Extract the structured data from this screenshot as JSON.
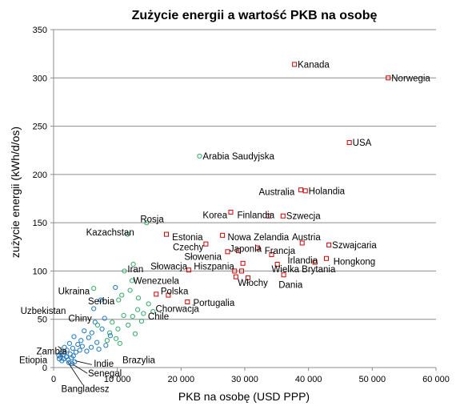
{
  "chart_data": {
    "type": "scatter",
    "title": "Zużycie energii a wartość PKB na osobę",
    "xlabel": "PKB na osobę (USD PPP)",
    "ylabel": "zużycie energii (kWh/d/os)",
    "xlim": [
      0,
      60000
    ],
    "ylim": [
      0,
      350
    ],
    "xticks": [
      0,
      10000,
      20000,
      30000,
      40000,
      50000,
      60000
    ],
    "xtick_labels": [
      "0",
      "10 000",
      "20 000",
      "30 000",
      "40 000",
      "50 000",
      "60 000"
    ],
    "yticks": [
      0,
      50,
      100,
      150,
      200,
      250,
      300,
      350
    ],
    "ytick_labels": [
      "0",
      "50",
      "100",
      "150",
      "200",
      "250",
      "300",
      "350"
    ],
    "grid": "horizontal",
    "colors": {
      "high": "#cc0000",
      "mid": "#33aa66",
      "low": "#1f77c0"
    },
    "series": [
      {
        "color": "high",
        "points": [
          {
            "x": 37800,
            "y": 314,
            "label": "Kanada"
          },
          {
            "x": 52500,
            "y": 300,
            "label": "Norwegia"
          },
          {
            "x": 46400,
            "y": 233,
            "label": "USA"
          },
          {
            "x": 38800,
            "y": 184
          },
          {
            "x": 39500,
            "y": 183,
            "label": "Holandia"
          },
          {
            "x": 27800,
            "y": 161
          },
          {
            "x": 33700,
            "y": 157
          },
          {
            "x": 36000,
            "y": 157,
            "label": "Szwecja"
          },
          {
            "x": 17700,
            "y": 138
          },
          {
            "x": 26500,
            "y": 137
          },
          {
            "x": 39000,
            "y": 129
          },
          {
            "x": 23900,
            "y": 128
          },
          {
            "x": 43200,
            "y": 127,
            "label": "Szwajcaria"
          },
          {
            "x": 32000,
            "y": 124
          },
          {
            "x": 29000,
            "y": 121
          },
          {
            "x": 34200,
            "y": 117
          },
          {
            "x": 27300,
            "y": 120
          },
          {
            "x": 42800,
            "y": 113
          },
          {
            "x": 41000,
            "y": 109
          },
          {
            "x": 29700,
            "y": 108
          },
          {
            "x": 35100,
            "y": 107
          },
          {
            "x": 21200,
            "y": 101
          },
          {
            "x": 28400,
            "y": 100
          },
          {
            "x": 29500,
            "y": 100
          },
          {
            "x": 36100,
            "y": 96
          },
          {
            "x": 28600,
            "y": 94
          },
          {
            "x": 30500,
            "y": 93
          },
          {
            "x": 16100,
            "y": 76
          },
          {
            "x": 18000,
            "y": 75
          },
          {
            "x": 21000,
            "y": 68
          }
        ]
      },
      {
        "color": "mid",
        "points": [
          {
            "x": 22900,
            "y": 219,
            "label": "Arabia Saudyjska"
          },
          {
            "x": 14600,
            "y": 150
          },
          {
            "x": 11600,
            "y": 138
          },
          {
            "x": 12500,
            "y": 107
          },
          {
            "x": 11100,
            "y": 100
          },
          {
            "x": 12300,
            "y": 90
          },
          {
            "x": 6300,
            "y": 82
          },
          {
            "x": 12000,
            "y": 80
          },
          {
            "x": 10700,
            "y": 75
          },
          {
            "x": 13300,
            "y": 72
          },
          {
            "x": 10200,
            "y": 70
          },
          {
            "x": 14900,
            "y": 66
          },
          {
            "x": 13200,
            "y": 60
          },
          {
            "x": 15600,
            "y": 58
          },
          {
            "x": 14100,
            "y": 56
          },
          {
            "x": 11000,
            "y": 54
          },
          {
            "x": 12400,
            "y": 53
          },
          {
            "x": 13800,
            "y": 48
          },
          {
            "x": 9200,
            "y": 47
          },
          {
            "x": 11700,
            "y": 44
          },
          {
            "x": 10100,
            "y": 40
          },
          {
            "x": 8800,
            "y": 36
          },
          {
            "x": 12800,
            "y": 35
          },
          {
            "x": 9800,
            "y": 30
          },
          {
            "x": 8400,
            "y": 28
          },
          {
            "x": 10400,
            "y": 25
          },
          {
            "x": 6900,
            "y": 44
          }
        ]
      },
      {
        "color": "low",
        "points": [
          {
            "x": 9700,
            "y": 83
          },
          {
            "x": 7400,
            "y": 70
          },
          {
            "x": 6300,
            "y": 61
          },
          {
            "x": 8000,
            "y": 51
          },
          {
            "x": 6500,
            "y": 47
          },
          {
            "x": 7600,
            "y": 40
          },
          {
            "x": 4800,
            "y": 38
          },
          {
            "x": 6000,
            "y": 36
          },
          {
            "x": 8900,
            "y": 33
          },
          {
            "x": 3200,
            "y": 32
          },
          {
            "x": 5500,
            "y": 31
          },
          {
            "x": 4300,
            "y": 28
          },
          {
            "x": 6800,
            "y": 26
          },
          {
            "x": 2500,
            "y": 25
          },
          {
            "x": 3800,
            "y": 24
          },
          {
            "x": 8200,
            "y": 23
          },
          {
            "x": 4500,
            "y": 22
          },
          {
            "x": 5900,
            "y": 21
          },
          {
            "x": 1700,
            "y": 21
          },
          {
            "x": 3000,
            "y": 20
          },
          {
            "x": 7100,
            "y": 19
          },
          {
            "x": 2100,
            "y": 18
          },
          {
            "x": 4100,
            "y": 18
          },
          {
            "x": 5200,
            "y": 17
          },
          {
            "x": 3500,
            "y": 16
          },
          {
            "x": 1200,
            "y": 15
          },
          {
            "x": 2600,
            "y": 14
          },
          {
            "x": 1500,
            "y": 13
          },
          {
            "x": 800,
            "y": 13
          },
          {
            "x": 3100,
            "y": 12
          },
          {
            "x": 2000,
            "y": 11
          },
          {
            "x": 1100,
            "y": 11
          },
          {
            "x": 2800,
            "y": 10
          },
          {
            "x": 1600,
            "y": 9
          },
          {
            "x": 900,
            "y": 9
          },
          {
            "x": 2300,
            "y": 8
          },
          {
            "x": 1300,
            "y": 7
          },
          {
            "x": 3300,
            "y": 6
          },
          {
            "x": 2400,
            "y": 5
          },
          {
            "x": 2900,
            "y": 4
          }
        ]
      }
    ],
    "annotations": [
      {
        "text": "Australia",
        "x": 32200,
        "y": 182
      },
      {
        "text": "Korea",
        "x": 23400,
        "y": 158
      },
      {
        "text": "Finlandia",
        "x": 28800,
        "y": 158
      },
      {
        "text": "Rosja",
        "x": 13600,
        "y": 154
      },
      {
        "text": "Kazachstan",
        "x": 5100,
        "y": 140
      },
      {
        "text": "Estonia",
        "x": 18600,
        "y": 135
      },
      {
        "text": "Nowa Zelandia",
        "x": 27300,
        "y": 135
      },
      {
        "text": "Austria",
        "x": 37400,
        "y": 135
      },
      {
        "text": "Czechy",
        "x": 18700,
        "y": 125
      },
      {
        "text": "Japonia",
        "x": 27600,
        "y": 123
      },
      {
        "text": "Francja",
        "x": 33100,
        "y": 121
      },
      {
        "text": "Słowenia",
        "x": 20500,
        "y": 115
      },
      {
        "text": "Irlandia",
        "x": 36700,
        "y": 111
      },
      {
        "text": "Hongkong",
        "x": 43900,
        "y": 110
      },
      {
        "text": "Iran",
        "x": 11600,
        "y": 102
      },
      {
        "text": "Słowacja",
        "x": 15200,
        "y": 105
      },
      {
        "text": "Hiszpania",
        "x": 22000,
        "y": 105
      },
      {
        "text": "Wielka Brytania",
        "x": 34200,
        "y": 102
      },
      {
        "text": "Wenezuela",
        "x": 12500,
        "y": 90
      },
      {
        "text": "Włochy",
        "x": 28900,
        "y": 88
      },
      {
        "text": "Dania",
        "x": 35300,
        "y": 86
      },
      {
        "text": "Ukraina",
        "x": 700,
        "y": 79
      },
      {
        "text": "Polska",
        "x": 16800,
        "y": 79
      },
      {
        "text": "Serbia",
        "x": 5400,
        "y": 69
      },
      {
        "text": "Portugalia",
        "x": 21900,
        "y": 67
      },
      {
        "text": "Chorwacja",
        "x": 16000,
        "y": 61
      },
      {
        "text": "Uzbekistan",
        "x": -5200,
        "y": 59
      },
      {
        "text": "Chile",
        "x": 14800,
        "y": 53
      },
      {
        "text": "Chiny",
        "x": 2300,
        "y": 51
      },
      {
        "text": "Zambia",
        "x": -2700,
        "y": 17
      },
      {
        "text": "Etiopia",
        "x": -5400,
        "y": 8
      },
      {
        "text": "Indie",
        "x": 6300,
        "y": 4
      },
      {
        "text": "Brazylia",
        "x": 10800,
        "y": 8
      },
      {
        "text": "Senegal",
        "x": 5400,
        "y": -6
      },
      {
        "text": "Bangladesz",
        "x": 1200,
        "y": -22
      }
    ]
  }
}
